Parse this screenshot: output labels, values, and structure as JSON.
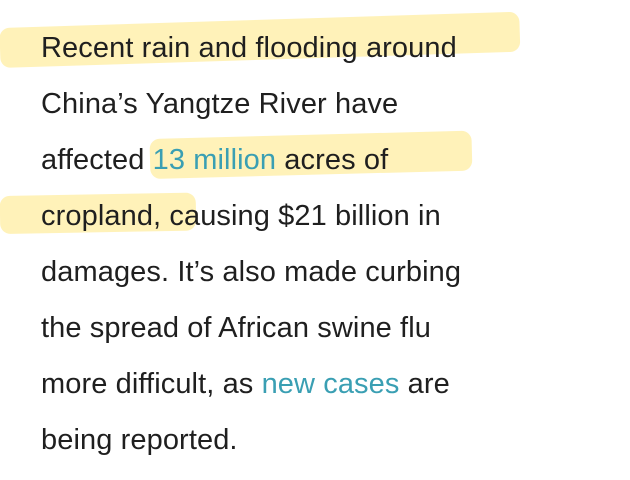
{
  "colors": {
    "text": "#1f1f1f",
    "link": "#3a9fb3",
    "highlight": "#ffe880",
    "background": "#ffffff"
  },
  "article": {
    "lines": [
      {
        "segments": [
          "Recent rain and flooding around"
        ]
      },
      {
        "segments": [
          "China’s Yangtze River have"
        ]
      },
      {
        "segments": [
          "affected ",
          "13 million",
          " acres of"
        ]
      },
      {
        "segments": [
          "cropland,",
          " causing $21 billion in"
        ]
      },
      {
        "segments": [
          "damages. It’s also made curbing"
        ]
      },
      {
        "segments": [
          "the spread of African swine flu"
        ]
      },
      {
        "segments": [
          "more difficult, as ",
          "new cases",
          " are"
        ]
      },
      {
        "segments": [
          "being reported."
        ]
      }
    ]
  }
}
